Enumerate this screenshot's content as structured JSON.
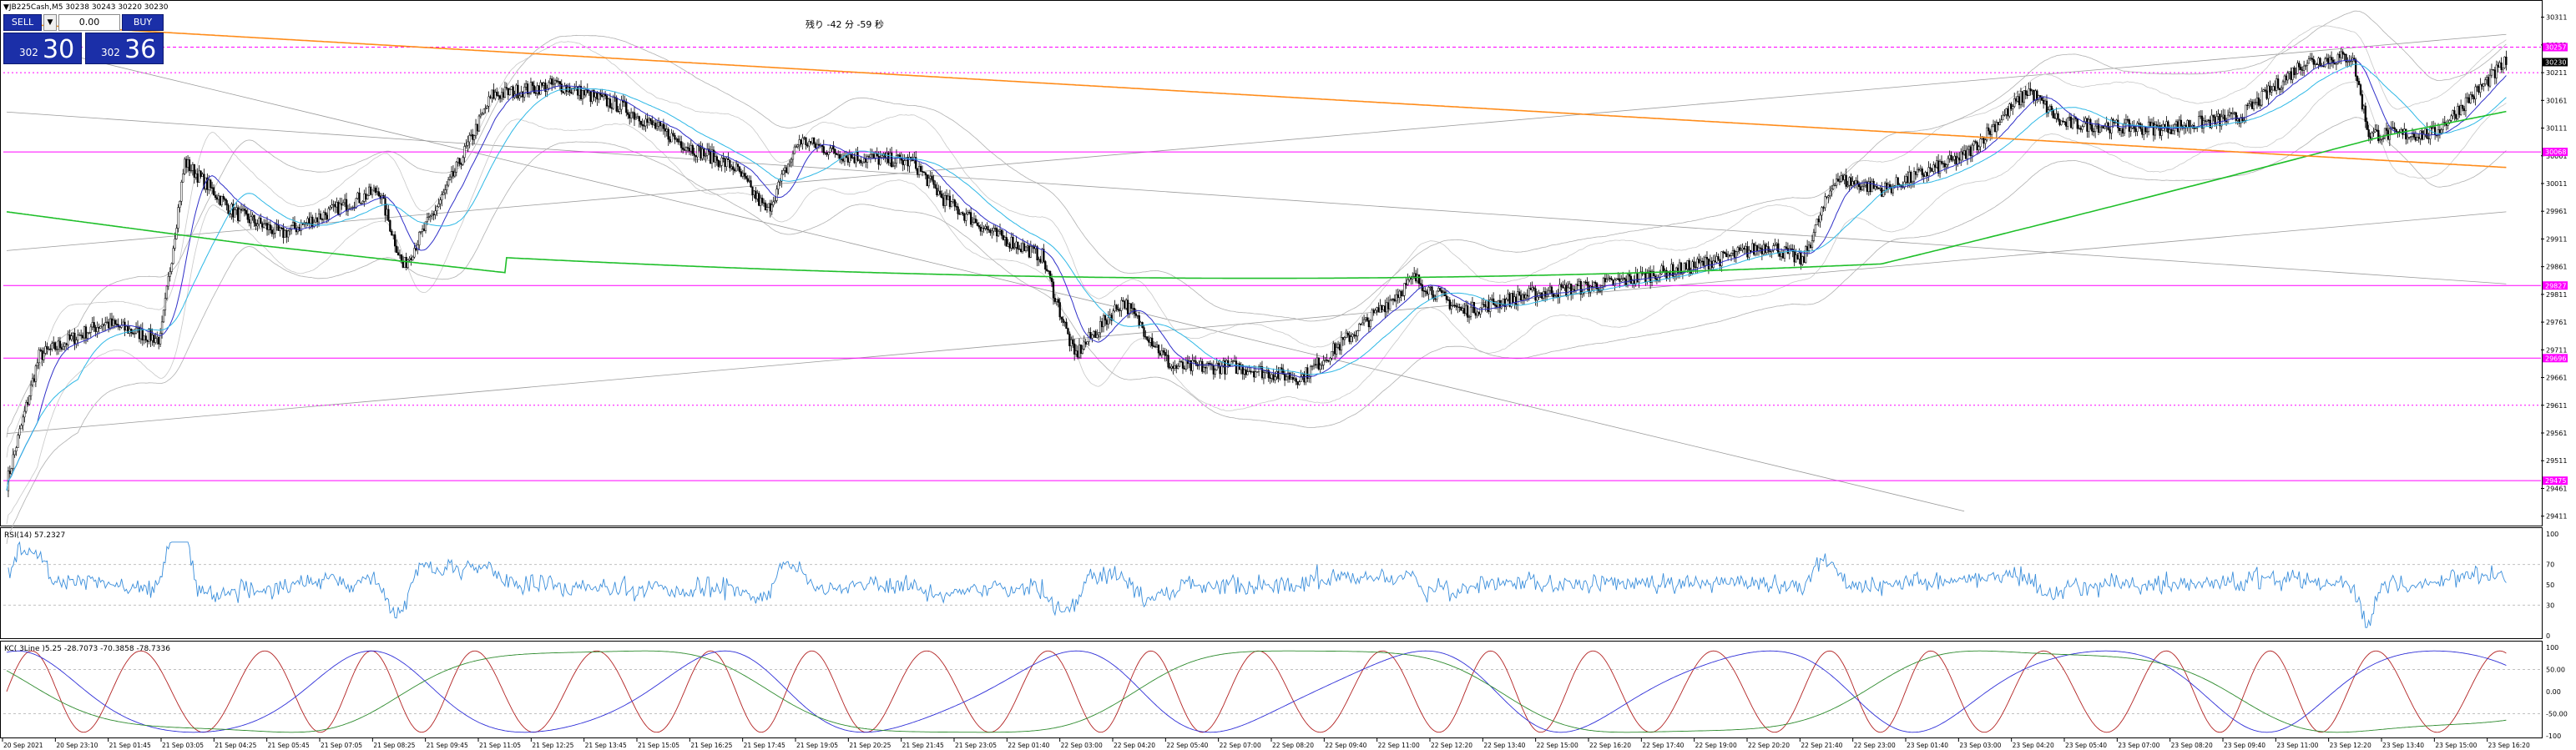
{
  "header": {
    "symbol_line": "▼JB225Cash,M5  30238 30243 30220 30230"
  },
  "timer_text": "残り -42 分 -59 秒",
  "trade_panel": {
    "sell_label": "SELL",
    "buy_label": "BUY",
    "lot_value": "0.00",
    "sell_price_small": "302",
    "sell_price_big": "30",
    "buy_price_small": "302",
    "buy_price_big": "36"
  },
  "price_axis": {
    "ticks": [
      "30311",
      "30261",
      "30211",
      "30161",
      "30111",
      "30061",
      "30011",
      "29961",
      "29911",
      "29861",
      "29811",
      "29761",
      "29711",
      "29661",
      "29611",
      "29561",
      "29511",
      "29461",
      "29411"
    ],
    "tags": [
      {
        "label": "30257",
        "color": "#ff00ff"
      },
      {
        "label": "30230",
        "color": "#000000"
      },
      {
        "label": "30068",
        "color": "#ff00ff"
      },
      {
        "label": "29827",
        "color": "#ff00ff"
      },
      {
        "label": "29696",
        "color": "#ff00ff"
      },
      {
        "label": "29475",
        "color": "#ff00ff"
      }
    ]
  },
  "time_axis": [
    "20 Sep 2021",
    "20 Sep 23:10",
    "21 Sep 01:45",
    "21 Sep 03:05",
    "21 Sep 04:25",
    "21 Sep 05:45",
    "21 Sep 07:05",
    "21 Sep 08:25",
    "21 Sep 09:45",
    "21 Sep 11:05",
    "21 Sep 12:25",
    "21 Sep 13:45",
    "21 Sep 15:05",
    "21 Sep 16:25",
    "21 Sep 17:45",
    "21 Sep 19:05",
    "21 Sep 20:25",
    "21 Sep 21:45",
    "21 Sep 23:05",
    "22 Sep 01:40",
    "22 Sep 03:00",
    "22 Sep 04:20",
    "22 Sep 05:40",
    "22 Sep 07:00",
    "22 Sep 08:20",
    "22 Sep 09:40",
    "22 Sep 11:00",
    "22 Sep 12:20",
    "22 Sep 13:40",
    "22 Sep 15:00",
    "22 Sep 16:20",
    "22 Sep 17:40",
    "22 Sep 19:00",
    "22 Sep 20:20",
    "22 Sep 21:40",
    "22 Sep 23:00",
    "23 Sep 01:40",
    "23 Sep 03:00",
    "23 Sep 04:20",
    "23 Sep 05:40",
    "23 Sep 07:00",
    "23 Sep 08:20",
    "23 Sep 09:40",
    "23 Sep 11:00",
    "23 Sep 12:20",
    "23 Sep 13:40",
    "23 Sep 15:00",
    "23 Sep 16:20"
  ],
  "rsi": {
    "label": "RSI(14) 57.2327",
    "ticks": [
      "100",
      "70",
      "50",
      "30",
      "0"
    ],
    "color": "#3a8edb"
  },
  "stoch": {
    "label": "KC( 3Line )5.25 -28.7073 -70.3858 -78.7336",
    "ticks": [
      "100",
      "50.00",
      "0.00",
      "-50.00",
      "-100"
    ],
    "colors": [
      "#b22222",
      "#2f2fd8",
      "#2e8b2e"
    ]
  },
  "colors": {
    "up_candle": "#ffffff",
    "down_candle": "#000000",
    "ma_green": "#1fbf2a",
    "ma_orange": "#ff8c1a",
    "ma_blue": "#3030c8",
    "ma_cyan": "#2eb8e6",
    "magenta": "#ff00ff",
    "band_grey": "#c8c8c8",
    "trend_grey": "#9a9a9a"
  }
}
